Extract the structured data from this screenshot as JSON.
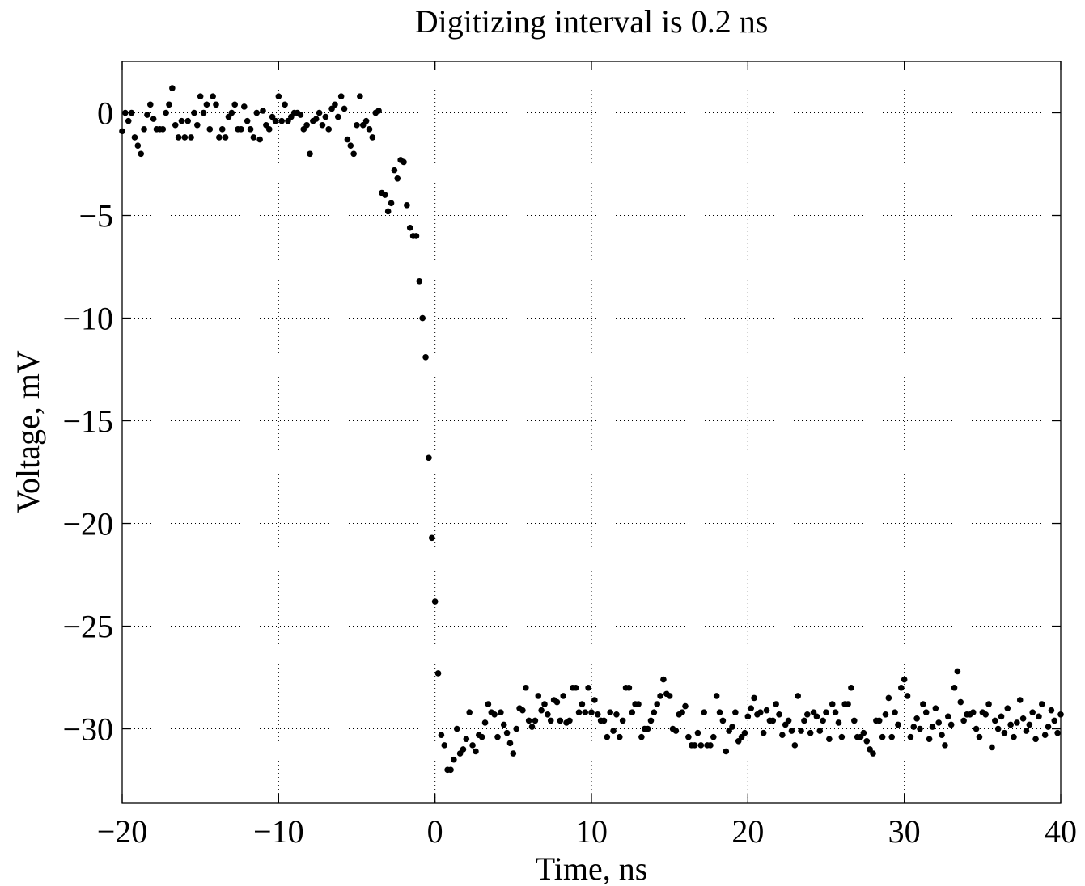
{
  "chart_data": {
    "type": "scatter",
    "title": "Digitizing interval is 0.2 ns",
    "x_label": "Time, ns",
    "y_label": "Voltage, mV",
    "xlim": [
      -20,
      40
    ],
    "ylim": [
      -33.6,
      2.5
    ],
    "xticks": [
      {
        "value": -20,
        "label": "−20"
      },
      {
        "value": -10,
        "label": "−10"
      },
      0,
      10,
      20,
      30,
      40
    ],
    "yticks": [
      0,
      {
        "value": -5,
        "label": "−5"
      },
      {
        "value": -10,
        "label": "−10"
      },
      {
        "value": -15,
        "label": "−15"
      },
      {
        "value": -20,
        "label": "−20"
      },
      {
        "value": -25,
        "label": "−25"
      },
      {
        "value": -30,
        "label": "−30"
      }
    ],
    "grid": true,
    "color": "#000000",
    "x": [
      -20,
      -19.8,
      -19.6,
      -19.4,
      -19.2,
      -19,
      -18.8,
      -18.6,
      -18.4,
      -18.2,
      -18,
      -17.8,
      -17.6,
      -17.4,
      -17.2,
      -17,
      -16.8,
      -16.6,
      -16.4,
      -16.2,
      -16,
      -15.8,
      -15.6,
      -15.4,
      -15.2,
      -15,
      -14.8,
      -14.6,
      -14.4,
      -14.2,
      -14,
      -13.8,
      -13.6,
      -13.4,
      -13.2,
      -13,
      -12.8,
      -12.6,
      -12.4,
      -12.2,
      -12,
      -11.8,
      -11.6,
      -11.4,
      -11.2,
      -11,
      -10.8,
      -10.6,
      -10.4,
      -10.2,
      -10,
      -9.8,
      -9.6,
      -9.4,
      -9.2,
      -9,
      -8.8,
      -8.6,
      -8.4,
      -8.2,
      -8,
      -7.8,
      -7.6,
      -7.4,
      -7.2,
      -7,
      -6.8,
      -6.6,
      -6.4,
      -6.2,
      -6,
      -5.8,
      -5.6,
      -5.4,
      -5.2,
      -5,
      -4.8,
      -4.6,
      -4.4,
      -4.2,
      -4,
      -3.8,
      -3.6,
      -3.4,
      -3.2,
      -3,
      -2.8,
      -2.6,
      -2.4,
      -2.2,
      -2,
      -1.8,
      -1.6,
      -1.4,
      -1.2,
      -1,
      -0.8,
      -0.6,
      -0.4,
      -0.2,
      0,
      0.2,
      0.4,
      0.6,
      0.8,
      1,
      1.2,
      1.4,
      1.6,
      1.8,
      2,
      2.2,
      2.4,
      2.6,
      2.8,
      3,
      3.2,
      3.4,
      3.6,
      3.8,
      4,
      4.2,
      4.4,
      4.6,
      4.8,
      5,
      5.2,
      5.4,
      5.6,
      5.8,
      6,
      6.2,
      6.4,
      6.6,
      6.8,
      7,
      7.2,
      7.4,
      7.6,
      7.8,
      8,
      8.2,
      8.4,
      8.6,
      8.8,
      9,
      9.2,
      9.4,
      9.6,
      9.8,
      10,
      10.2,
      10.4,
      10.6,
      10.8,
      11,
      11.2,
      11.4,
      11.6,
      11.8,
      12,
      12.2,
      12.4,
      12.6,
      12.8,
      13,
      13.2,
      13.4,
      13.6,
      13.8,
      14,
      14.2,
      14.4,
      14.6,
      14.8,
      15,
      15.2,
      15.4,
      15.6,
      15.8,
      16,
      16.2,
      16.4,
      16.6,
      16.8,
      17,
      17.2,
      17.4,
      17.6,
      17.8,
      18,
      18.2,
      18.4,
      18.6,
      18.8,
      19,
      19.2,
      19.4,
      19.6,
      19.8,
      20,
      20.2,
      20.4,
      20.6,
      20.8,
      21,
      21.2,
      21.4,
      21.6,
      21.8,
      22,
      22.2,
      22.4,
      22.6,
      22.8,
      23,
      23.2,
      23.4,
      23.6,
      23.8,
      24,
      24.2,
      24.4,
      24.6,
      24.8,
      25,
      25.2,
      25.4,
      25.6,
      25.8,
      26,
      26.2,
      26.4,
      26.6,
      26.8,
      27,
      27.2,
      27.4,
      27.6,
      27.8,
      28,
      28.2,
      28.4,
      28.6,
      28.8,
      29,
      29.2,
      29.4,
      29.6,
      29.8,
      30,
      30.2,
      30.4,
      30.6,
      30.8,
      31,
      31.2,
      31.4,
      31.6,
      31.8,
      32,
      32.2,
      32.4,
      32.6,
      32.8,
      33,
      33.2,
      33.4,
      33.6,
      33.8,
      34,
      34.2,
      34.4,
      34.6,
      34.8,
      35,
      35.2,
      35.4,
      35.6,
      35.8,
      36,
      36.2,
      36.4,
      36.6,
      36.8,
      37,
      37.2,
      37.4,
      37.6,
      37.8,
      38,
      38.2,
      38.4,
      38.6,
      38.8,
      39,
      39.2,
      39.4,
      39.6,
      39.8,
      40
    ],
    "values": [
      -0.9,
      0,
      -0.4,
      0,
      -1.2,
      -1.6,
      -2,
      -0.8,
      -0.1,
      0.4,
      -0.3,
      -0.8,
      -0.8,
      -0.8,
      0,
      0.4,
      1.2,
      -0.6,
      -1.2,
      -0.4,
      -1.2,
      -0.4,
      -1.2,
      0,
      -0.6,
      0.8,
      0,
      0.4,
      -0.8,
      0.8,
      0.4,
      -1.2,
      -0.8,
      -1.2,
      -0.2,
      0,
      0.4,
      -0.8,
      -0.8,
      0.3,
      -0.4,
      -0.8,
      -1.2,
      0,
      -1.3,
      0.1,
      -0.6,
      -0.8,
      -0.2,
      -0.4,
      0.8,
      -0.4,
      0.4,
      -0.4,
      -0.2,
      0,
      0,
      -0.1,
      -0.8,
      -0.6,
      -2,
      -0.4,
      -0.3,
      0,
      -0.6,
      -0.2,
      -0.8,
      0.2,
      0.4,
      -0.2,
      0.8,
      0.2,
      -1.3,
      -1.6,
      -2,
      -0.6,
      0.8,
      -0.6,
      -0.4,
      -0.8,
      -1.2,
      0,
      0.1,
      -3.9,
      -4,
      -4.8,
      -4.4,
      -2.8,
      -3.2,
      -2.3,
      -2.4,
      -4.5,
      -5.6,
      -6,
      -6,
      -8.2,
      -10,
      -11.9,
      -16.8,
      -20.7,
      -23.8,
      -27.3,
      -30.3,
      -30.8,
      -32,
      -32,
      -31.5,
      -30,
      -31.2,
      -31,
      -30.5,
      -29.2,
      -30.8,
      -31.1,
      -30.3,
      -30.4,
      -29.7,
      -28.8,
      -29.2,
      -29.3,
      -30.4,
      -29.2,
      -29.8,
      -30.2,
      -30.7,
      -31.2,
      -30,
      -29,
      -29.1,
      -28,
      -29.6,
      -29.9,
      -29.6,
      -28.4,
      -29.1,
      -28.8,
      -29.3,
      -29.6,
      -28.6,
      -28.7,
      -29.6,
      -28.4,
      -29.7,
      -29.6,
      -28,
      -28,
      -29.2,
      -28.8,
      -29.2,
      -28,
      -29.2,
      -28.6,
      -29.3,
      -29.6,
      -29.6,
      -30.4,
      -29.2,
      -30.1,
      -29.3,
      -30.4,
      -29.6,
      -28,
      -28,
      -29.2,
      -28.8,
      -28.8,
      -30.4,
      -30,
      -30,
      -29.6,
      -29.2,
      -28.8,
      -28.4,
      -27.6,
      -28.3,
      -28.4,
      -30,
      -30.1,
      -29.3,
      -29.2,
      -28.9,
      -30.4,
      -30.8,
      -30.8,
      -30.2,
      -30.8,
      -29.2,
      -30.8,
      -30.8,
      -30.4,
      -28.4,
      -29.2,
      -29.6,
      -31.1,
      -30.1,
      -29.9,
      -29.2,
      -30.6,
      -30.4,
      -30.2,
      -29.4,
      -29,
      -28.5,
      -29.3,
      -29.2,
      -30.2,
      -29.1,
      -29.6,
      -29.6,
      -28.8,
      -29.3,
      -30.3,
      -29.8,
      -29.6,
      -30.1,
      -30.8,
      -28.4,
      -30.1,
      -29.6,
      -29.3,
      -30.2,
      -29.2,
      -29.4,
      -30.1,
      -29.6,
      -29.2,
      -30.5,
      -28.8,
      -29.2,
      -29.7,
      -30.4,
      -28.8,
      -28.8,
      -28,
      -29.6,
      -30.4,
      -30.4,
      -30.2,
      -30.6,
      -31,
      -31.2,
      -29.6,
      -29.6,
      -30.4,
      -29.3,
      -28.5,
      -30.4,
      -29.2,
      -29.8,
      -28,
      -27.6,
      -28.4,
      -30.4,
      -29.9,
      -29.5,
      -30,
      -28.8,
      -29.2,
      -30.5,
      -29.9,
      -29,
      -29.7,
      -30.3,
      -30.8,
      -29.4,
      -29.8,
      -28,
      -27.2,
      -28.7,
      -29.6,
      -29.3,
      -29.3,
      -29.2,
      -30,
      -30.4,
      -29.2,
      -29.3,
      -28.8,
      -30.9,
      -29.6,
      -30,
      -29.4,
      -30.2,
      -29,
      -29.8,
      -30.4,
      -29.7,
      -28.6,
      -29.5,
      -30.1,
      -29.8,
      -29.2,
      -30.5,
      -29.4,
      -28.8,
      -30.3,
      -29.9,
      -29.1,
      -29.6,
      -30.2,
      -29.3
    ]
  }
}
